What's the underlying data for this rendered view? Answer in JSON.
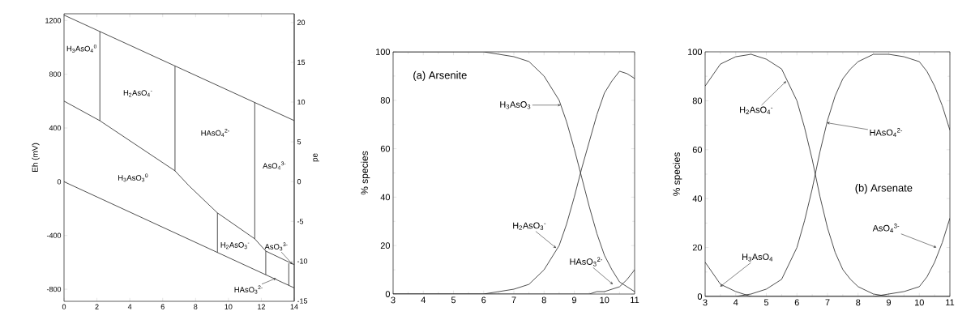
{
  "chart_data": [
    {
      "type": "line",
      "ylabel": "Eh (mV)",
      "y2label": "pe",
      "xlim": [
        0,
        14
      ],
      "xticks": [
        0,
        2,
        4,
        6,
        8,
        10,
        12,
        14
      ],
      "ylim": [
        -890,
        1250
      ],
      "yticks": [
        -800,
        -400,
        0,
        400,
        800,
        1200
      ],
      "y2lim": [
        -15.05,
        21.1
      ],
      "y2ticks": [
        -15,
        -10,
        -5,
        0,
        5,
        10,
        15,
        20
      ],
      "series": [
        {
          "color": "#222222",
          "x": [
            0,
            14
          ],
          "values": [
            1240,
            455
          ]
        },
        {
          "color": "#222222",
          "x": [
            0,
            14
          ],
          "values": [
            0,
            -790
          ]
        },
        {
          "color": "#222222",
          "x": [
            0,
            2.18,
            6.75,
            7.6,
            9.33,
            11.6,
            12.27,
            14
          ],
          "values": [
            600,
            454,
            81,
            -30,
            -232,
            -425,
            -516,
            -617
          ]
        },
        {
          "color": "#222222",
          "x": [
            2.18,
            2.18
          ],
          "values": [
            1118,
            454
          ]
        },
        {
          "color": "#222222",
          "x": [
            6.75,
            6.75
          ],
          "values": [
            861,
            81
          ]
        },
        {
          "color": "#222222",
          "x": [
            11.6,
            11.6
          ],
          "values": [
            590,
            -425
          ]
        },
        {
          "color": "#222222",
          "x": [
            9.33,
            9.33
          ],
          "values": [
            -232,
            -526
          ]
        },
        {
          "color": "#222222",
          "x": [
            12.27,
            12.27
          ],
          "values": [
            -516,
            -692
          ]
        },
        {
          "color": "#222222",
          "x": [
            13.67,
            13.67
          ],
          "values": [
            -607,
            -771
          ]
        }
      ],
      "annotations": [
        "H$_{3}$AsO$_{4}$$^{0}$",
        "H$_{2}$AsO$_{4}$$^{-}$",
        "HAsO$_{4}$$^{2-}$",
        "AsO$_{4}$$^{3-}$",
        "H$_{3}$AsO$_{3}$$^{0}$",
        "H$_{2}$AsO$_{3}$$^{-}$",
        {
          "text": "AsO$_{3}$$^{3-}$",
          "x": 13.9,
          "y": -615
        },
        {
          "text": "HAsO$_{3}$$^{2-}$",
          "x": 12.9,
          "y": -718
        }
      ]
    },
    {
      "type": "line",
      "title": "(a) Arsenite",
      "ylabel": "% species",
      "xlim": [
        3,
        11
      ],
      "xticks": [
        3,
        4,
        5,
        6,
        7,
        8,
        9,
        10,
        11
      ],
      "ylim": [
        0,
        100
      ],
      "yticks": [
        0,
        20,
        40,
        60,
        80,
        100
      ],
      "x": [
        3,
        4,
        5,
        6,
        6.5,
        7,
        7.5,
        8,
        8.5,
        8.75,
        9,
        9.25,
        9.5,
        9.75,
        10,
        10.25,
        10.5,
        10.75,
        11
      ],
      "series": [
        {
          "color": "#222222",
          "values": [
            100,
            100,
            100,
            100,
            99,
            98,
            96,
            90,
            80,
            71,
            60,
            48,
            36,
            25,
            16,
            10,
            5,
            3,
            1
          ]
        },
        {
          "color": "#222222",
          "values": [
            0,
            0,
            0,
            0,
            1,
            2,
            4,
            10,
            20,
            29,
            40,
            52,
            63,
            74,
            83,
            88,
            92,
            91,
            89
          ]
        },
        {
          "color": "#222222",
          "values": [
            0,
            0,
            0,
            0,
            0,
            0,
            0,
            0,
            0,
            0,
            0,
            0,
            0,
            1,
            1,
            2,
            3,
            6,
            10
          ]
        }
      ],
      "annotations": [
        {
          "text": "H$_{3}$AsO$_{3}$",
          "x": 8.55,
          "y": 78
        },
        {
          "text": "H$_{2}$AsO$_{3}$$^{-}$",
          "x": 8.4,
          "y": 19
        },
        {
          "text": "HAsO$_{3}$$^{2-}$",
          "x": 10.28,
          "y": 4
        }
      ]
    },
    {
      "type": "line",
      "title": "(b) Arsenate",
      "ylabel": "% species",
      "xlim": [
        3,
        11
      ],
      "xticks": [
        3,
        4,
        5,
        6,
        7,
        8,
        9,
        10,
        11
      ],
      "ylim": [
        0,
        100
      ],
      "yticks": [
        0,
        20,
        40,
        60,
        80,
        100
      ],
      "x": [
        3,
        3.5,
        4,
        4.5,
        5,
        5.5,
        6,
        6.25,
        6.5,
        6.75,
        7,
        7.25,
        7.5,
        7.75,
        8,
        8.5,
        9,
        9.5,
        10,
        10.25,
        10.5,
        10.75,
        11
      ],
      "series": [
        {
          "color": "#222222",
          "values": [
            14,
            5,
            2,
            0,
            0,
            0,
            0,
            0,
            0,
            0,
            0,
            0,
            0,
            0,
            0,
            0,
            0,
            0,
            0,
            0,
            0,
            0,
            0
          ]
        },
        {
          "color": "#222222",
          "values": [
            86,
            95,
            98,
            99,
            97,
            93,
            80,
            69,
            56,
            41,
            28,
            18,
            11,
            7,
            4,
            1,
            0,
            0,
            0,
            0,
            0,
            0,
            0
          ]
        },
        {
          "color": "#222222",
          "values": [
            0,
            0,
            0,
            1,
            3,
            7,
            20,
            31,
            44,
            59,
            72,
            82,
            89,
            93,
            96,
            99,
            99,
            98,
            96,
            92,
            86,
            78,
            68
          ]
        },
        {
          "color": "#222222",
          "values": [
            0,
            0,
            0,
            0,
            0,
            0,
            0,
            0,
            0,
            0,
            0,
            0,
            0,
            0,
            0,
            0,
            1,
            2,
            4,
            8,
            14,
            22,
            32
          ]
        }
      ],
      "annotations": [
        {
          "text": "H$_{2}$AsO$_{4}$$^{-}$",
          "x": 5.65,
          "y": 88
        },
        {
          "text": "HAsO$_{4}$$^{2-}$",
          "x": 6.98,
          "y": 71
        },
        {
          "text": "H$_{3}$AsO$_{4}$",
          "x": 3.49,
          "y": 4
        },
        {
          "text": "AsO$_{4}$$^{3-}$",
          "x": 10.56,
          "y": 20
        }
      ]
    }
  ]
}
